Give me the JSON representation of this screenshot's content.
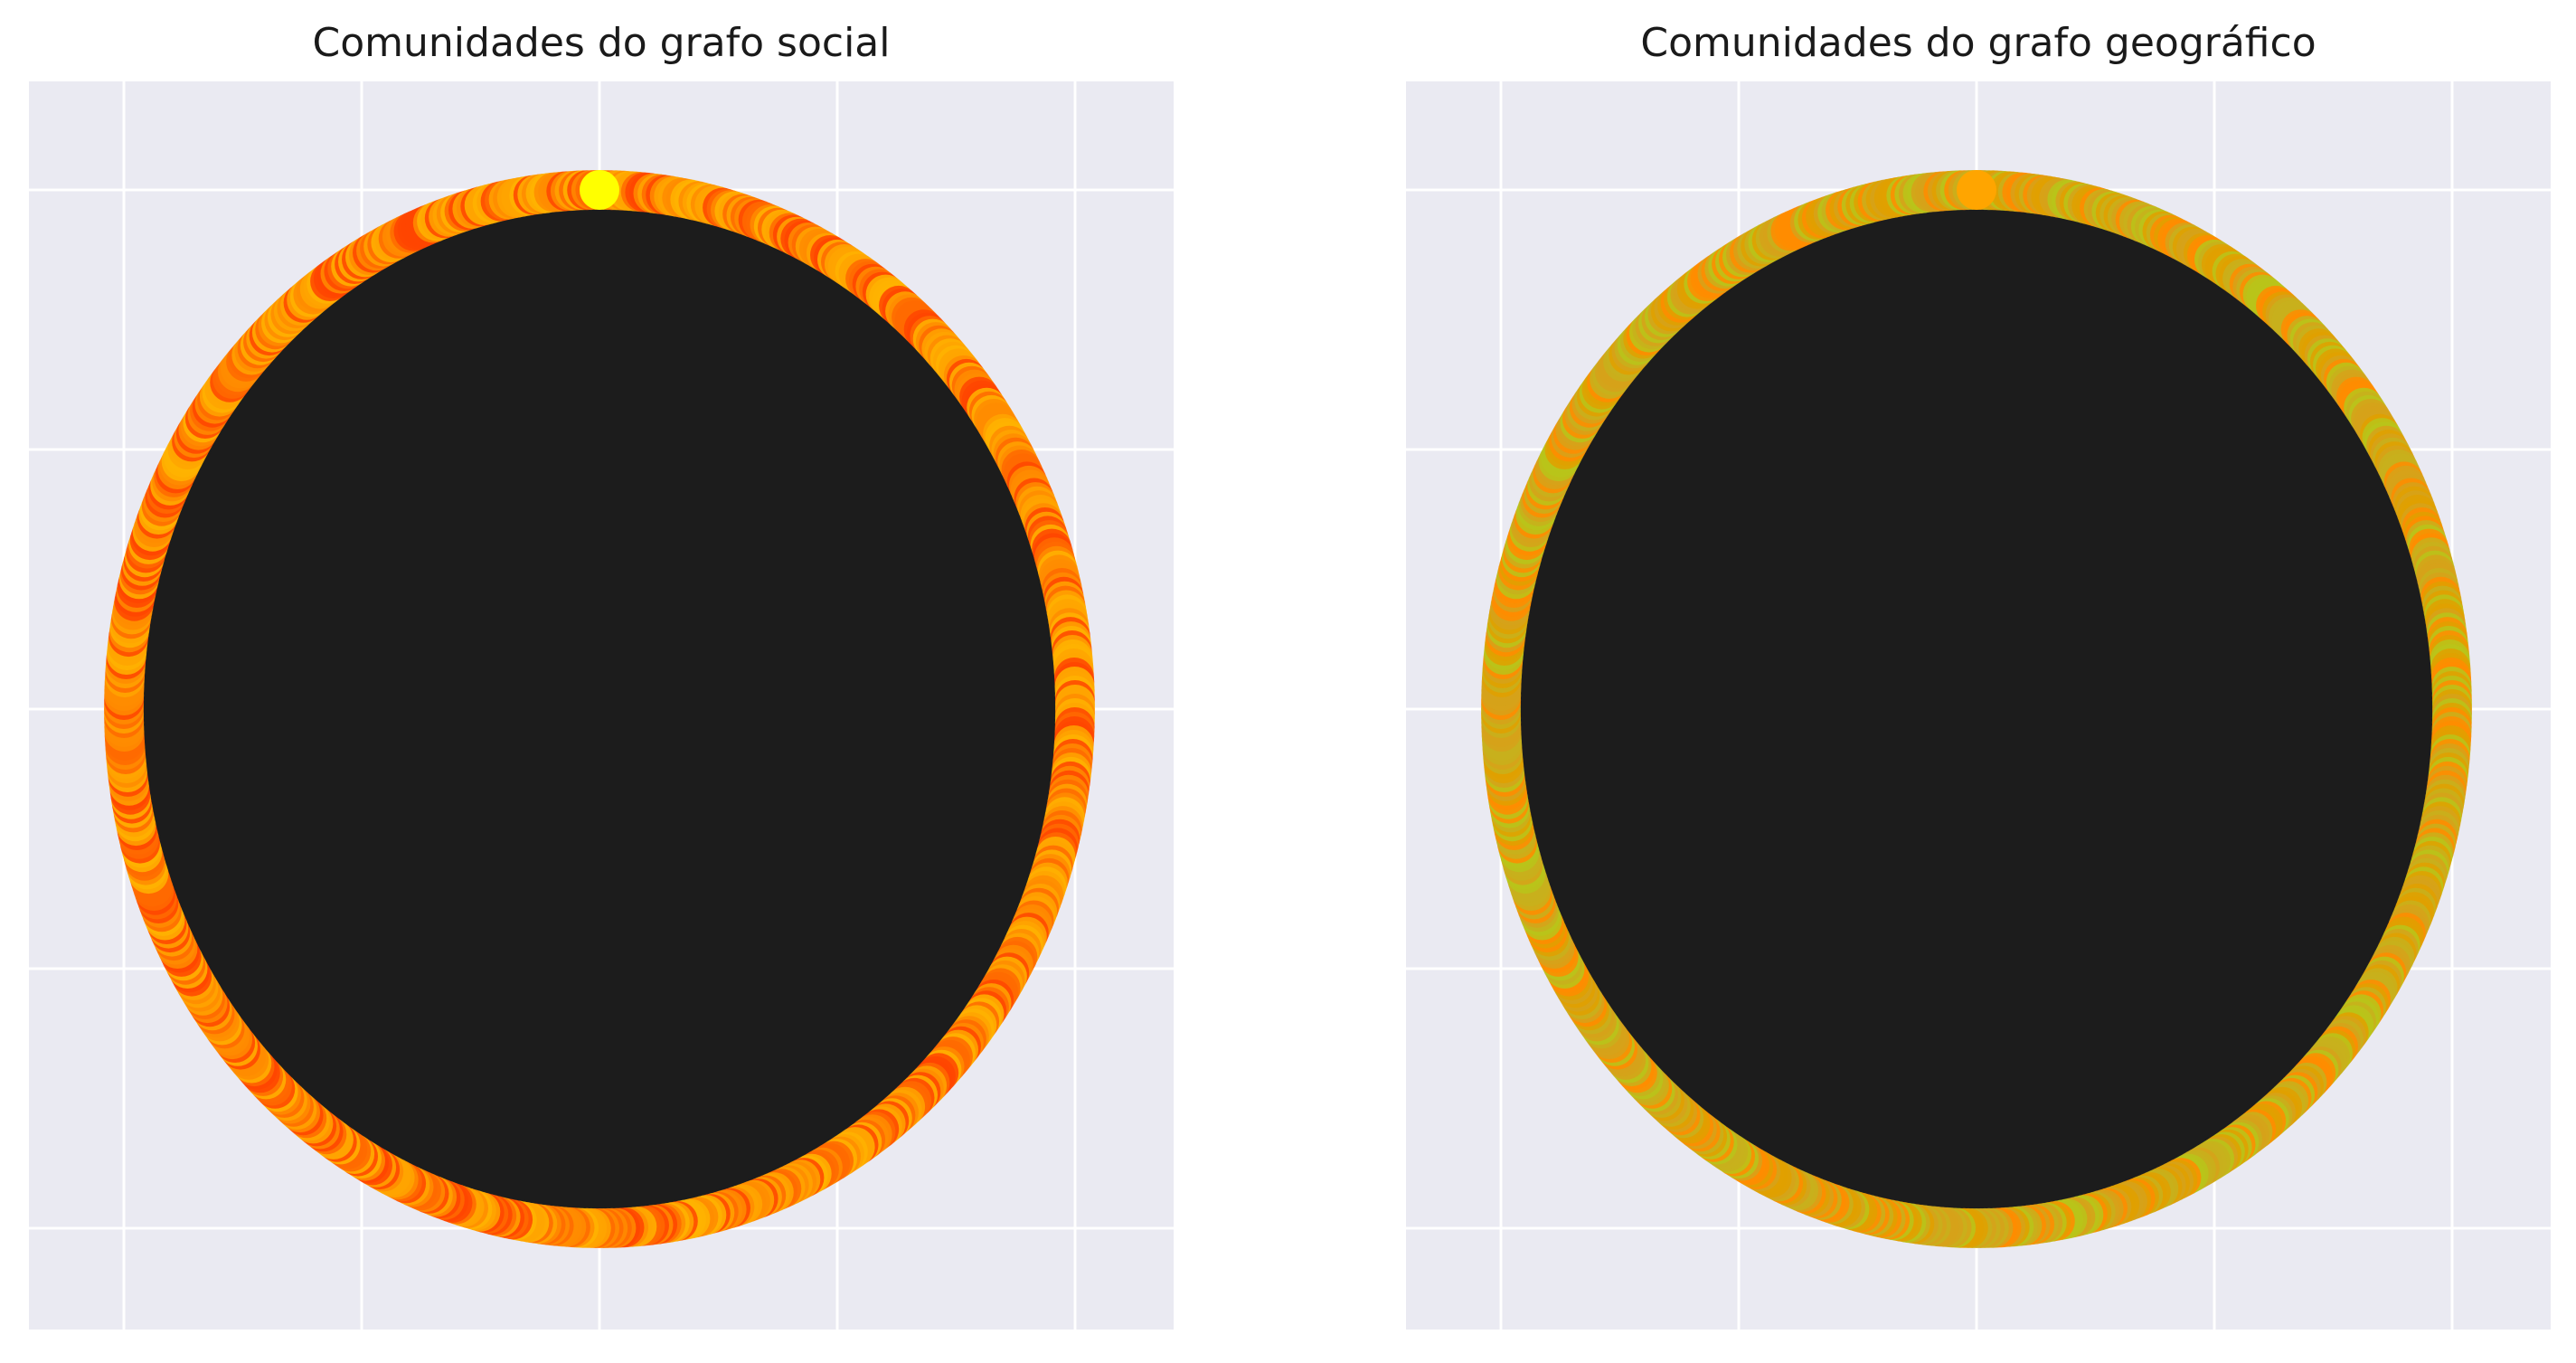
{
  "chart_data": [
    {
      "type": "network",
      "title": "Comunidades do grafo social",
      "layout": "circular",
      "grid": true,
      "axis_tick_labels": false,
      "background": "#eaeaf2",
      "edge_color": "#1c1c1c",
      "node_colors": [
        "#ff8c00",
        "#ff6a00",
        "#ffa500",
        "#ff4500",
        "#ffb300"
      ],
      "highlight_node_color": "#ffff00"
    },
    {
      "type": "network",
      "title": "Comunidades do grafo geográfico",
      "layout": "circular",
      "grid": true,
      "axis_tick_labels": false,
      "background": "#eaeaf2",
      "edge_color": "#1c1c1c",
      "node_colors": [
        "#d6a21a",
        "#c8b01c",
        "#e0a000",
        "#ff8c00",
        "#b8c41a"
      ],
      "highlight_node_color": "#ffa500"
    }
  ]
}
